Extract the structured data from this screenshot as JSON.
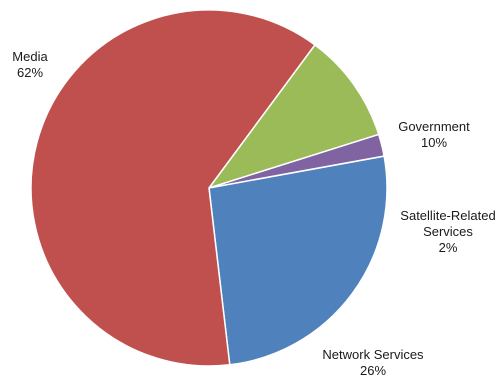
{
  "chart_data": {
    "type": "pie",
    "title": "",
    "start_angle_deg": 36.5,
    "direction": "clockwise",
    "legend": "none",
    "slices": [
      {
        "category": "Government",
        "value": 10,
        "value_label": "10%",
        "label_lines": [
          "Government"
        ],
        "color": "#9BBB59"
      },
      {
        "category": "Satellite-Related Services",
        "value": 2,
        "value_label": "2%",
        "label_lines": [
          "Satellite-Related",
          "Services"
        ],
        "color": "#8064A2"
      },
      {
        "category": "Network Services",
        "value": 26,
        "value_label": "26%",
        "label_lines": [
          "Network Services"
        ],
        "color": "#4F81BD"
      },
      {
        "category": "Media",
        "value": 62,
        "value_label": "62%",
        "label_lines": [
          "Media"
        ],
        "color": "#C0504D"
      }
    ]
  }
}
